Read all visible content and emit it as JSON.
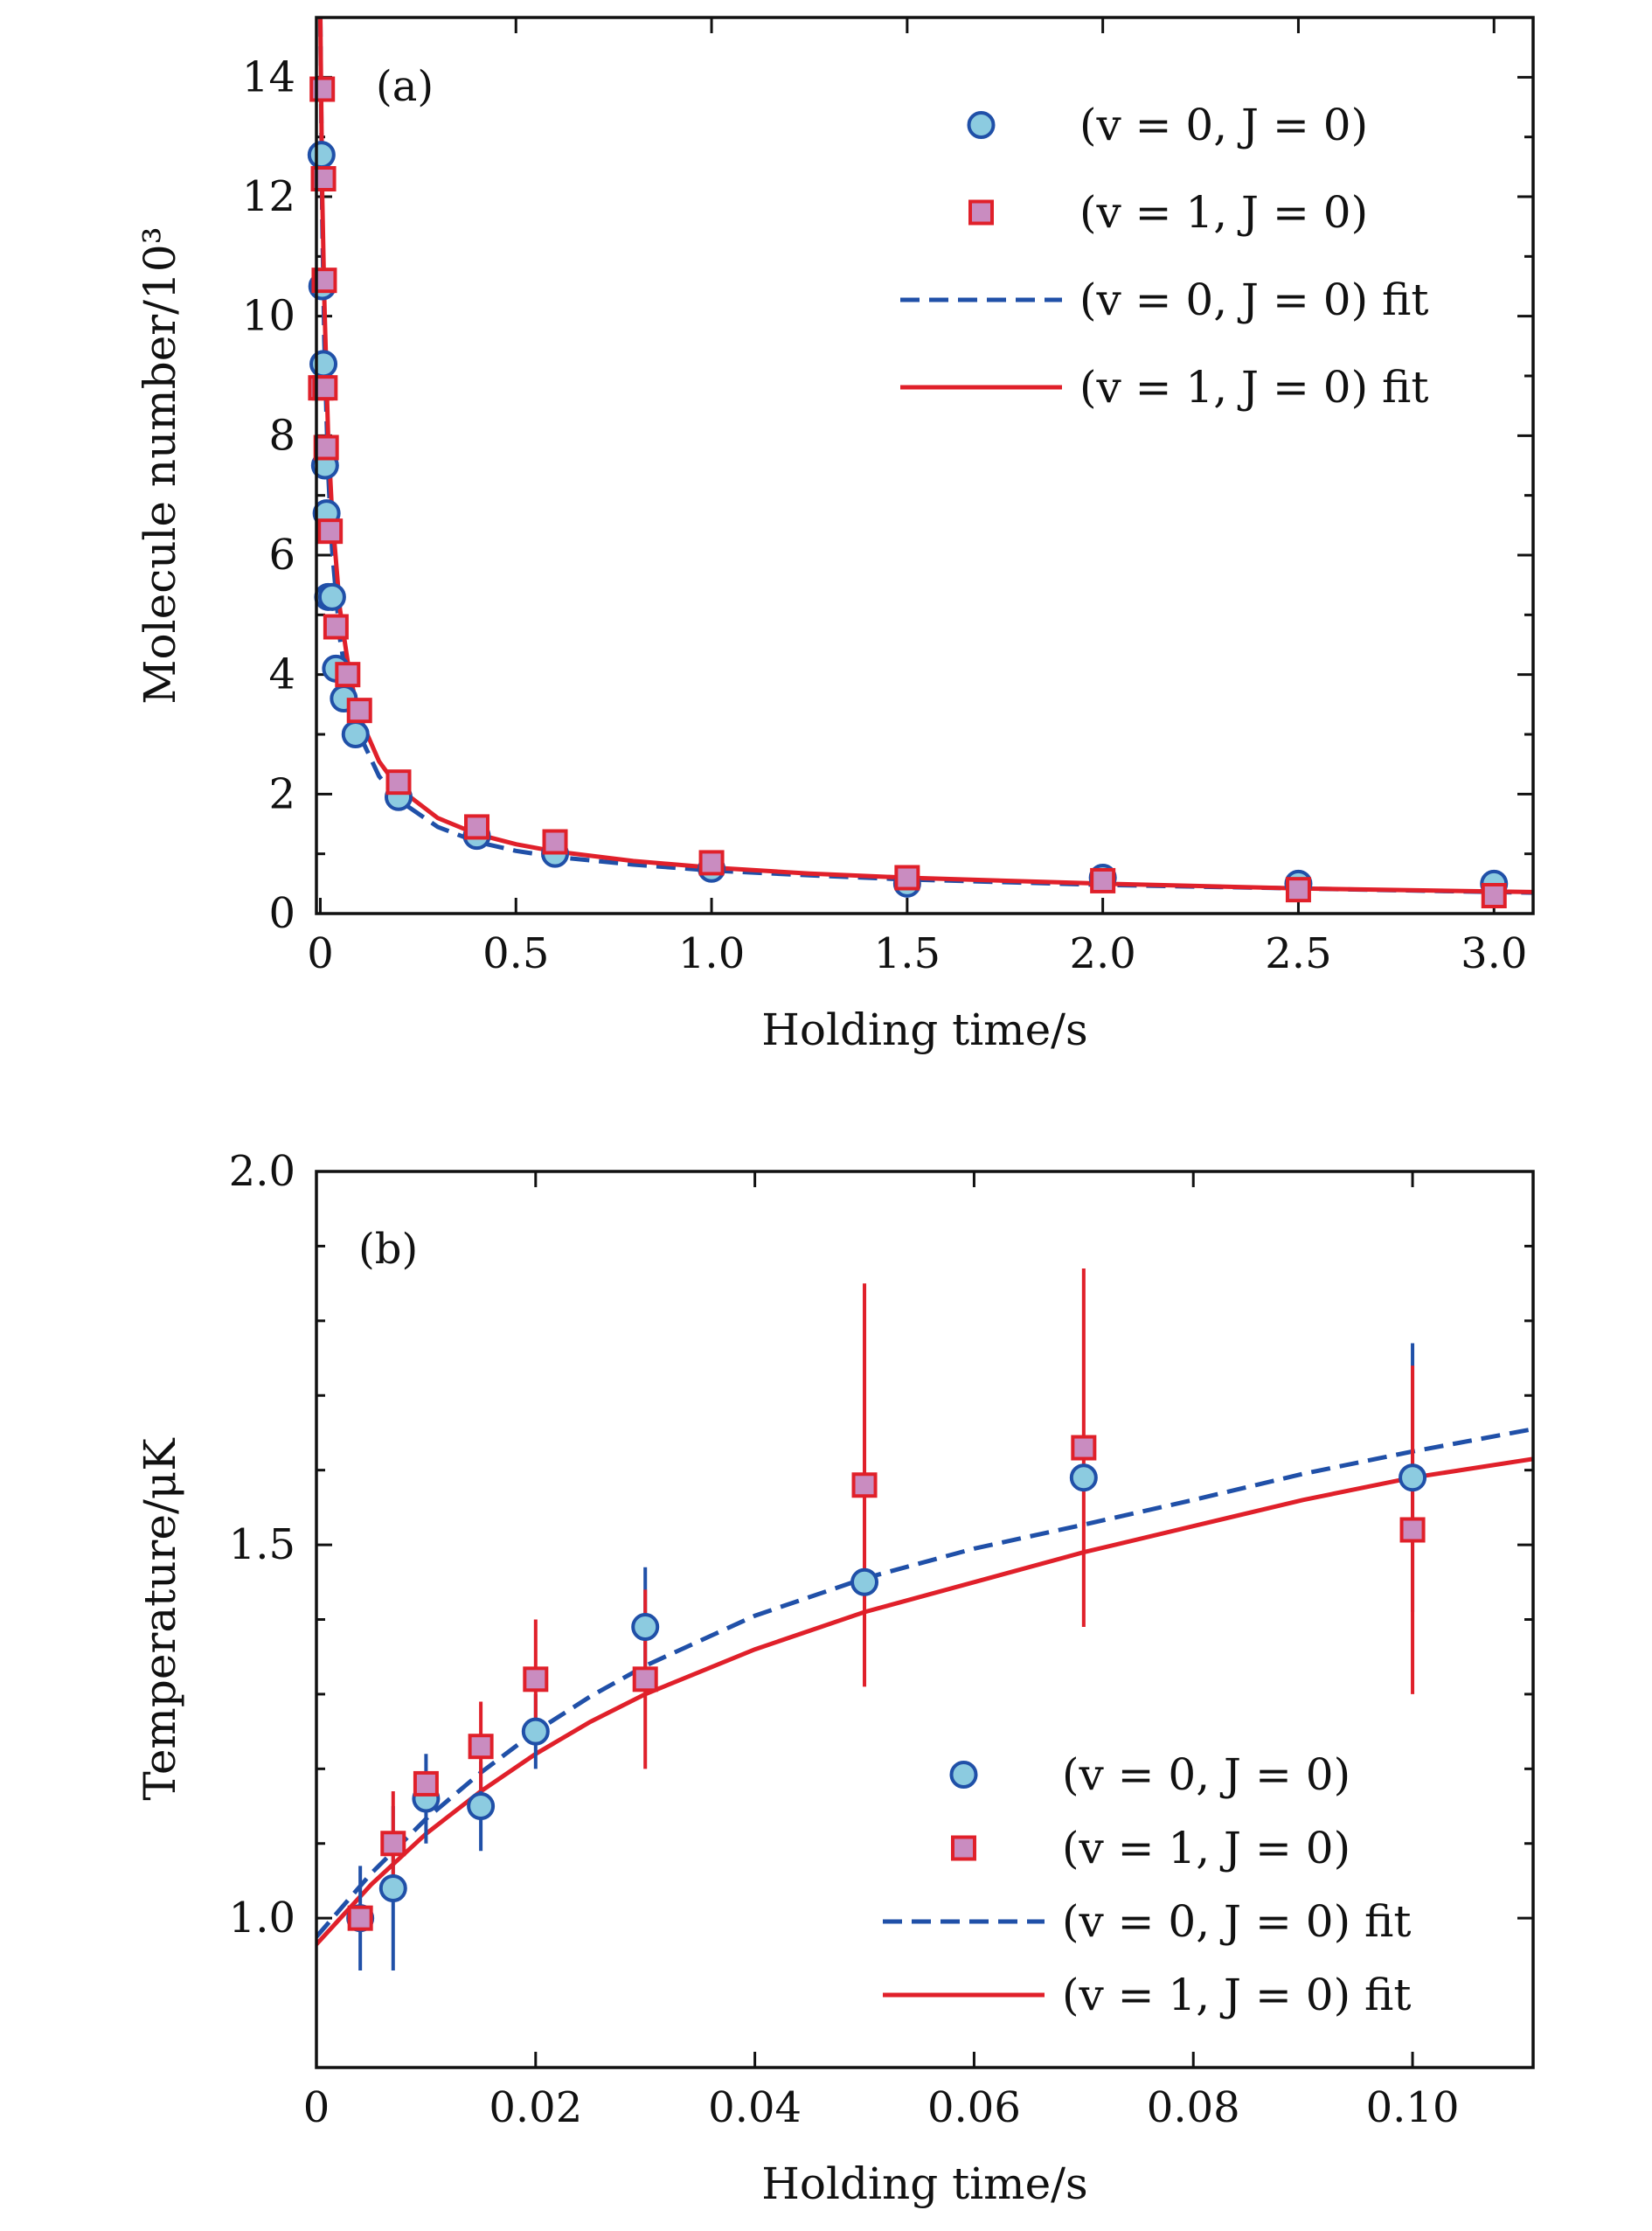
{
  "colors": {
    "circle_fill": "#8ccbe0",
    "circle_stroke": "#2050a8",
    "square_fill": "#c98cc0",
    "square_stroke": "#e0202a",
    "dashed_line": "#2050a8",
    "solid_line": "#e0202a",
    "axis": "#111111"
  },
  "chart_data": [
    {
      "type": "scatter",
      "panel_label": "(a)",
      "xlabel": "Holding time/s",
      "ylabel": "Molecule number/10³",
      "xlim": [
        -0.01,
        3.1
      ],
      "ylim": [
        0,
        15
      ],
      "xticks": [
        0,
        0.5,
        1.0,
        1.5,
        2.0,
        2.5,
        3.0
      ],
      "xtick_labels": [
        "0",
        "0.5",
        "1.0",
        "1.5",
        "2.0",
        "2.5",
        "3.0"
      ],
      "yticks": [
        0,
        2,
        4,
        6,
        8,
        10,
        12,
        14
      ],
      "ytick_labels": [
        "0",
        "2",
        "4",
        "6",
        "8",
        "10",
        "12",
        "14"
      ],
      "legend_position": "top-right",
      "legend": [
        "(v = 0, J = 0)",
        "(v = 1, J = 0)",
        "(v = 0, J = 0) fit",
        "(v = 1, J = 0) fit"
      ],
      "series": [
        {
          "name": "(v = 0, J = 0)",
          "marker": "circle",
          "x": [
            0.003,
            0.005,
            0.008,
            0.012,
            0.016,
            0.02,
            0.03,
            0.04,
            0.06,
            0.09,
            0.2,
            0.4,
            0.6,
            1.0,
            1.5,
            2.0,
            2.5,
            3.0
          ],
          "y": [
            12.7,
            10.5,
            9.2,
            7.5,
            6.7,
            5.3,
            5.3,
            4.1,
            3.6,
            3.0,
            1.95,
            1.3,
            1.0,
            0.75,
            0.5,
            0.6,
            0.5,
            0.5
          ]
        },
        {
          "name": "(v = 1, J = 0)",
          "marker": "square",
          "x": [
            0.001,
            0.005,
            0.008,
            0.01,
            0.012,
            0.015,
            0.025,
            0.04,
            0.07,
            0.1,
            0.2,
            0.4,
            0.6,
            1.0,
            1.5,
            2.0,
            2.5,
            3.0
          ],
          "y": [
            8.8,
            13.8,
            12.3,
            10.6,
            8.8,
            7.8,
            6.4,
            4.8,
            4.0,
            3.4,
            2.2,
            1.45,
            1.2,
            0.85,
            0.6,
            0.55,
            0.4,
            0.3
          ]
        }
      ],
      "fits": [
        {
          "name": "(v = 0, J = 0) fit",
          "style": "dashed",
          "x": [
            0,
            0.005,
            0.01,
            0.02,
            0.03,
            0.05,
            0.075,
            0.1,
            0.15,
            0.2,
            0.3,
            0.4,
            0.5,
            0.6,
            0.8,
            1.0,
            1.25,
            1.5,
            2.0,
            2.5,
            3.0,
            3.1
          ],
          "y": [
            15.0,
            11.6,
            9.6,
            7.4,
            6.1,
            4.6,
            3.6,
            3.0,
            2.3,
            1.9,
            1.45,
            1.2,
            1.05,
            0.95,
            0.82,
            0.72,
            0.64,
            0.57,
            0.48,
            0.42,
            0.36,
            0.35
          ]
        },
        {
          "name": "(v = 1, J = 0) fit",
          "style": "solid",
          "x": [
            0,
            0.005,
            0.01,
            0.02,
            0.03,
            0.05,
            0.075,
            0.1,
            0.15,
            0.2,
            0.3,
            0.4,
            0.5,
            0.6,
            0.8,
            1.0,
            1.25,
            1.5,
            2.0,
            2.5,
            3.0,
            3.1
          ],
          "y": [
            15.0,
            12.0,
            10.3,
            8.0,
            6.7,
            5.1,
            4.0,
            3.3,
            2.55,
            2.1,
            1.6,
            1.33,
            1.16,
            1.04,
            0.88,
            0.77,
            0.67,
            0.6,
            0.5,
            0.42,
            0.37,
            0.36
          ]
        }
      ]
    },
    {
      "type": "scatter",
      "panel_label": "(b)",
      "xlabel": "Holding time/s",
      "ylabel": "Temperature/μK",
      "xlim": [
        0,
        0.111
      ],
      "ylim": [
        0.8,
        2.0
      ],
      "xticks": [
        0,
        0.02,
        0.04,
        0.06,
        0.08,
        0.1
      ],
      "xtick_labels": [
        "0",
        "0.02",
        "0.04",
        "0.06",
        "0.08",
        "0.10"
      ],
      "yticks": [
        1.0,
        1.5,
        2.0
      ],
      "ytick_labels": [
        "1.0",
        "1.5",
        "2.0"
      ],
      "legend_position": "bottom-right",
      "legend": [
        "(v = 0, J = 0)",
        "(v = 1, J = 0)",
        "(v = 0, J = 0) fit",
        "(v = 1, J = 0) fit"
      ],
      "series": [
        {
          "name": "(v = 0, J = 0)",
          "marker": "circle",
          "x": [
            0.004,
            0.007,
            0.01,
            0.015,
            0.02,
            0.03,
            0.05,
            0.07,
            0.1
          ],
          "y": [
            1.0,
            1.04,
            1.16,
            1.15,
            1.25,
            1.39,
            1.45,
            1.59,
            1.59
          ],
          "err": [
            0.07,
            0.11,
            0.06,
            0.06,
            0.05,
            0.08,
            0.0,
            0.0,
            0.18
          ]
        },
        {
          "name": "(v = 1, J = 0)",
          "marker": "square",
          "x": [
            0.004,
            0.007,
            0.01,
            0.015,
            0.02,
            0.03,
            0.05,
            0.07,
            0.1
          ],
          "y": [
            1.0,
            1.1,
            1.18,
            1.23,
            1.32,
            1.32,
            1.58,
            1.63,
            1.52
          ],
          "err": [
            0.0,
            0.07,
            0.0,
            0.06,
            0.08,
            0.12,
            0.27,
            0.24,
            0.22
          ]
        }
      ],
      "fits": [
        {
          "name": "(v = 0, J = 0) fit",
          "style": "dashed",
          "x": [
            0,
            0.005,
            0.01,
            0.015,
            0.02,
            0.025,
            0.03,
            0.04,
            0.05,
            0.06,
            0.07,
            0.08,
            0.09,
            0.1,
            0.111
          ],
          "y": [
            0.975,
            1.06,
            1.133,
            1.195,
            1.25,
            1.297,
            1.338,
            1.405,
            1.455,
            1.495,
            1.527,
            1.56,
            1.595,
            1.625,
            1.655
          ]
        },
        {
          "name": "(v = 1, J = 0) fit",
          "style": "solid",
          "x": [
            0,
            0.005,
            0.01,
            0.015,
            0.02,
            0.025,
            0.03,
            0.04,
            0.05,
            0.06,
            0.07,
            0.08,
            0.09,
            0.1,
            0.111
          ],
          "y": [
            0.965,
            1.045,
            1.113,
            1.17,
            1.22,
            1.263,
            1.3,
            1.36,
            1.41,
            1.45,
            1.49,
            1.525,
            1.56,
            1.59,
            1.615
          ]
        }
      ]
    }
  ]
}
